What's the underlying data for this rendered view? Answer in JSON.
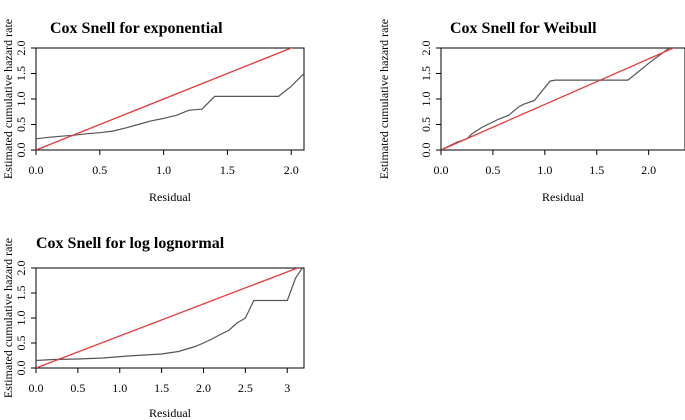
{
  "chart_data": [
    {
      "type": "line",
      "title": "Cox Snell for exponential",
      "xlabel": "Residual",
      "ylabel": "Estimated cumulative hazard rate",
      "xlim": [
        0,
        2.1
      ],
      "ylim": [
        0,
        2.0
      ],
      "xticks": [
        0.0,
        0.5,
        1.0,
        1.5,
        2.0
      ],
      "xtick_labels": [
        "0.0",
        "0.5",
        "1.0",
        "1.5",
        "2.0"
      ],
      "yticks": [
        0.0,
        0.5,
        1.0,
        1.5,
        2.0
      ],
      "ytick_labels": [
        "0.0",
        "0.5",
        "1.0",
        "1.5",
        "2.0"
      ],
      "colors": {
        "series": "#555555",
        "reference": "#e8393a"
      },
      "series": [
        {
          "x": [
            0,
            0.1,
            0.2,
            0.3,
            0.4,
            0.5,
            0.6,
            0.7,
            0.8,
            0.9,
            1.0,
            1.1,
            1.2,
            1.3,
            1.4,
            1.5,
            1.6,
            1.7,
            1.8,
            1.9,
            2.0,
            2.1
          ],
          "y": [
            0.22,
            0.25,
            0.27,
            0.29,
            0.32,
            0.34,
            0.37,
            0.43,
            0.5,
            0.57,
            0.62,
            0.68,
            0.78,
            0.8,
            1.05,
            1.05,
            1.05,
            1.05,
            1.05,
            1.05,
            1.25,
            1.5
          ]
        },
        {
          "x": [
            0,
            2.1
          ],
          "y": [
            0,
            2.1
          ]
        }
      ]
    },
    {
      "type": "line",
      "title": "Cox Snell for Weibull",
      "xlabel": "Residual",
      "ylabel": "Estimated cumulative hazard rate",
      "xlim": [
        0,
        2.35
      ],
      "ylim": [
        0,
        2.0
      ],
      "xticks": [
        0.0,
        0.5,
        1.0,
        1.5,
        2.0
      ],
      "xtick_labels": [
        "0.0",
        "0.5",
        "1.0",
        "1.5",
        "2.0"
      ],
      "yticks": [
        0.0,
        0.5,
        1.0,
        1.5,
        2.0
      ],
      "ytick_labels": [
        "0.0",
        "0.5",
        "1.0",
        "1.5",
        "2.0"
      ],
      "colors": {
        "series": "#555555",
        "reference": "#e8393a"
      },
      "series": [
        {
          "x": [
            0,
            0.05,
            0.15,
            0.25,
            0.3,
            0.4,
            0.5,
            0.55,
            0.65,
            0.75,
            0.8,
            0.9,
            1.05,
            1.1,
            1.5,
            1.8,
            1.85,
            2.0,
            2.1,
            2.2,
            2.3
          ],
          "y": [
            0,
            0.05,
            0.15,
            0.22,
            0.32,
            0.45,
            0.55,
            0.6,
            0.68,
            0.85,
            0.9,
            0.97,
            1.35,
            1.37,
            1.37,
            1.37,
            1.45,
            1.7,
            1.85,
            2.0,
            2.1
          ]
        },
        {
          "x": [
            0,
            2.35
          ],
          "y": [
            0,
            2.1
          ]
        }
      ]
    },
    {
      "type": "line",
      "title": "Cox Snell for log lognormal",
      "xlabel": "Residual",
      "ylabel": "Estimated cumulative hazard rate",
      "xlim": [
        0,
        3.2
      ],
      "ylim": [
        0,
        2.0
      ],
      "xticks": [
        0.0,
        0.5,
        1.0,
        1.5,
        2.0,
        2.5,
        3.0
      ],
      "xtick_labels": [
        "0.0",
        "0.5",
        "1.0",
        "1.5",
        "2.0",
        "2.5",
        "3"
      ],
      "yticks": [
        0.0,
        0.5,
        1.0,
        1.5,
        2.0
      ],
      "ytick_labels": [
        "0.0",
        "0.5",
        "1.0",
        "1.5",
        "2.0"
      ],
      "colors": {
        "series": "#555555",
        "reference": "#e8393a"
      },
      "series": [
        {
          "x": [
            0,
            0.2,
            0.5,
            0.8,
            1.1,
            1.5,
            1.7,
            1.9,
            2.0,
            2.1,
            2.2,
            2.3,
            2.4,
            2.5,
            2.6,
            2.7,
            2.8,
            2.9,
            3.0,
            3.1,
            3.2
          ],
          "y": [
            0.15,
            0.17,
            0.18,
            0.2,
            0.24,
            0.28,
            0.33,
            0.43,
            0.5,
            0.58,
            0.67,
            0.75,
            0.9,
            1.0,
            1.35,
            1.35,
            1.35,
            1.35,
            1.35,
            1.8,
            2.05
          ]
        },
        {
          "x": [
            0,
            3.2
          ],
          "y": [
            0,
            2.05
          ]
        }
      ]
    }
  ]
}
